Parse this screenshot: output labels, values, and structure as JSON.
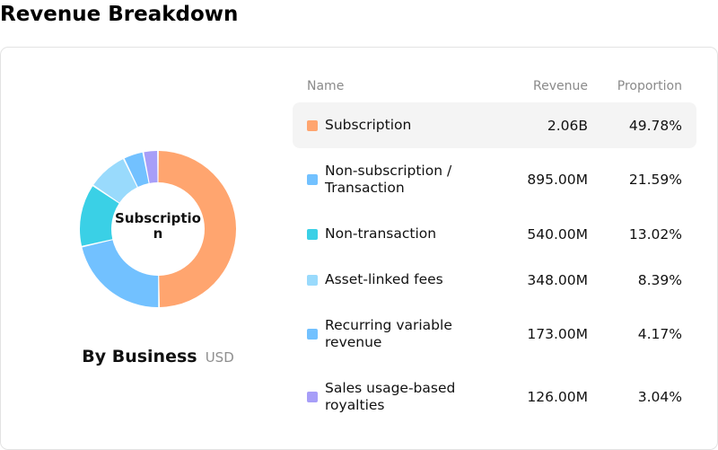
{
  "page": {
    "title": "Revenue Breakdown"
  },
  "donut": {
    "center_label": "Subscription"
  },
  "footer": {
    "label": "By Business",
    "unit": "USD"
  },
  "table": {
    "headers": {
      "name": "Name",
      "revenue": "Revenue",
      "proportion": "Proportion"
    },
    "rows": [
      {
        "name": "Subscription",
        "revenue": "2.06B",
        "proportion": "49.78%",
        "color": "#ffa56f",
        "share": 49.78,
        "selected": true
      },
      {
        "name": "Non-subscription / Transaction",
        "revenue": "895.00M",
        "proportion": "21.59%",
        "color": "#72c1ff",
        "share": 21.59,
        "selected": false
      },
      {
        "name": "Non-transaction",
        "revenue": "540.00M",
        "proportion": "13.02%",
        "color": "#3ad0e6",
        "share": 13.02,
        "selected": false
      },
      {
        "name": "Asset-linked fees",
        "revenue": "348.00M",
        "proportion": "8.39%",
        "color": "#99dafc",
        "share": 8.39,
        "selected": false
      },
      {
        "name": "Recurring variable revenue",
        "revenue": "173.00M",
        "proportion": "4.17%",
        "color": "#72c1ff",
        "share": 4.17,
        "selected": false
      },
      {
        "name": "Sales usage-based royalties",
        "revenue": "126.00M",
        "proportion": "3.04%",
        "color": "#a79ef8",
        "share": 3.04,
        "selected": false
      }
    ]
  }
}
